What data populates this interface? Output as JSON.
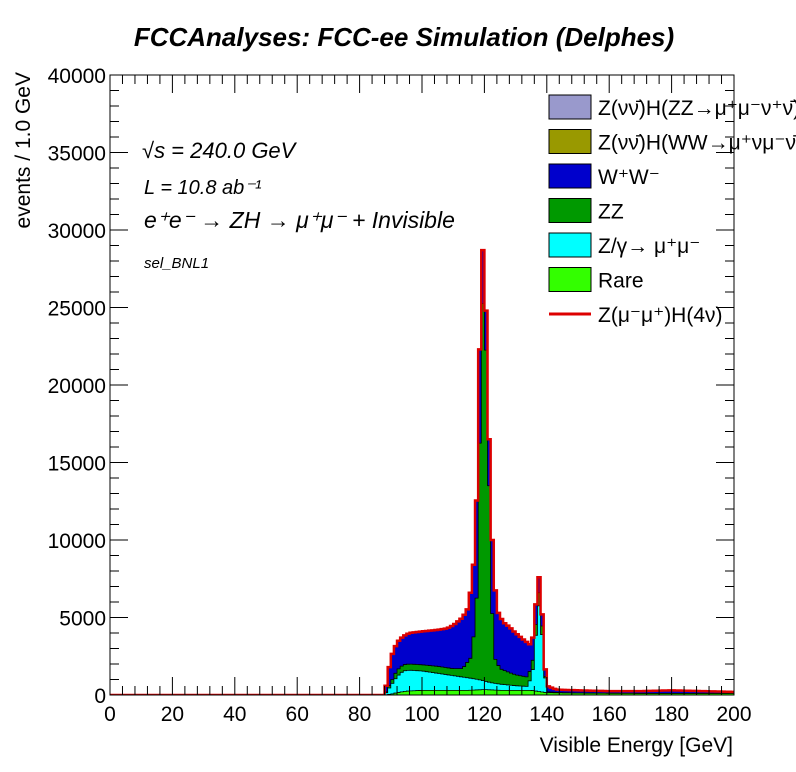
{
  "chart_data": {
    "type": "area",
    "title": "FCCAnalyses: FCC-ee Simulation (Delphes)",
    "xlabel": "Visible Energy [GeV]",
    "ylabel": "events / 1.0 GeV",
    "xlim": [
      0,
      200
    ],
    "ylim": [
      0,
      40000
    ],
    "x_ticks": [
      "0",
      "20",
      "40",
      "60",
      "80",
      "100",
      "120",
      "140",
      "160",
      "180",
      "200"
    ],
    "y_ticks": [
      "0",
      "5000",
      "10000",
      "15000",
      "20000",
      "25000",
      "30000",
      "35000",
      "40000"
    ],
    "stacked": true,
    "legend_position": "top-right",
    "annotations": {
      "energy": "√s = 240.0 GeV",
      "lumi": "L = 10.8 ab⁻¹",
      "process": "e⁺e⁻ → ZH → μ⁺μ⁻ + Invisible",
      "selection": "sel_BNL1"
    },
    "series": [
      {
        "name": "Rare",
        "color": "#33ff00",
        "stack_order": 1,
        "points": [
          [
            88,
            0
          ],
          [
            90,
            50
          ],
          [
            92,
            150
          ],
          [
            95,
            250
          ],
          [
            100,
            300
          ],
          [
            110,
            300
          ],
          [
            115,
            300
          ],
          [
            120,
            350
          ],
          [
            125,
            300
          ],
          [
            130,
            300
          ],
          [
            135,
            300
          ],
          [
            140,
            150
          ],
          [
            150,
            120
          ],
          [
            170,
            100
          ],
          [
            200,
            100
          ]
        ]
      },
      {
        "name": "Z/γ→ μ⁺μ⁻",
        "color": "#00ffff",
        "stack_order": 2,
        "points": [
          [
            88,
            0
          ],
          [
            90,
            600
          ],
          [
            92,
            1200
          ],
          [
            94,
            1550
          ],
          [
            96,
            1600
          ],
          [
            100,
            1550
          ],
          [
            105,
            1400
          ],
          [
            110,
            1250
          ],
          [
            115,
            1100
          ],
          [
            118,
            1000
          ],
          [
            120,
            900
          ],
          [
            122,
            800
          ],
          [
            125,
            700
          ],
          [
            130,
            600
          ],
          [
            134,
            550
          ],
          [
            136,
            2000
          ],
          [
            137,
            5700
          ],
          [
            138,
            5800
          ],
          [
            139,
            2000
          ],
          [
            140,
            200
          ],
          [
            145,
            120
          ],
          [
            150,
            100
          ],
          [
            160,
            100
          ],
          [
            180,
            100
          ],
          [
            200,
            100
          ]
        ]
      },
      {
        "name": "ZZ",
        "color": "#009900",
        "stack_order": 3,
        "points": [
          [
            88,
            0
          ],
          [
            90,
            800
          ],
          [
            92,
            1600
          ],
          [
            94,
            1950
          ],
          [
            96,
            2000
          ],
          [
            100,
            1950
          ],
          [
            105,
            1850
          ],
          [
            110,
            1700
          ],
          [
            113,
            1700
          ],
          [
            116,
            2500
          ],
          [
            118,
            7500
          ],
          [
            119,
            25000
          ],
          [
            120,
            25500
          ],
          [
            121,
            19000
          ],
          [
            122,
            8000
          ],
          [
            123,
            2500
          ],
          [
            125,
            1700
          ],
          [
            128,
            1450
          ],
          [
            130,
            1300
          ],
          [
            134,
            1150
          ],
          [
            136,
            2600
          ],
          [
            137,
            6500
          ],
          [
            138,
            6700
          ],
          [
            139,
            2200
          ],
          [
            140,
            200
          ],
          [
            145,
            150
          ],
          [
            150,
            120
          ],
          [
            160,
            100
          ],
          [
            180,
            100
          ],
          [
            200,
            100
          ]
        ]
      },
      {
        "name": "W⁺W⁻",
        "color": "#0000cc",
        "stack_order": 4,
        "points": [
          [
            88,
            0
          ],
          [
            90,
            2400
          ],
          [
            92,
            3400
          ],
          [
            94,
            3800
          ],
          [
            96,
            4000
          ],
          [
            100,
            4100
          ],
          [
            105,
            4200
          ],
          [
            108,
            4300
          ],
          [
            110,
            4500
          ],
          [
            113,
            5000
          ],
          [
            115,
            5700
          ],
          [
            117,
            9300
          ],
          [
            118,
            15800
          ],
          [
            119,
            28800
          ],
          [
            120,
            28600
          ],
          [
            121,
            21000
          ],
          [
            122,
            12000
          ],
          [
            123,
            8000
          ],
          [
            124,
            5500
          ],
          [
            126,
            4700
          ],
          [
            128,
            4400
          ],
          [
            130,
            4000
          ],
          [
            133,
            3500
          ],
          [
            135,
            3200
          ],
          [
            136,
            4200
          ],
          [
            137,
            7500
          ],
          [
            138,
            7700
          ],
          [
            139,
            2700
          ],
          [
            140,
            600
          ],
          [
            143,
            350
          ],
          [
            150,
            300
          ],
          [
            160,
            250
          ],
          [
            170,
            250
          ],
          [
            180,
            300
          ],
          [
            190,
            250
          ],
          [
            200,
            200
          ]
        ]
      },
      {
        "name": "Z(νν̄)H(WW→μ⁺νμ⁻ν̄)",
        "color": "#999900",
        "stack_order": 5,
        "points": []
      },
      {
        "name": "Z(νν̄)H(ZZ→μ⁺μ⁻ν⁺ν̄)",
        "color": "#9999cc",
        "stack_order": 6,
        "points": []
      },
      {
        "name": "Z(μ⁻μ⁺)H(4ν)",
        "color": "#dd0000",
        "style": "line",
        "points": [
          [
            0,
            0
          ],
          [
            88,
            0
          ],
          [
            90,
            2400
          ],
          [
            92,
            3400
          ],
          [
            94,
            3800
          ],
          [
            96,
            4000
          ],
          [
            100,
            4100
          ],
          [
            105,
            4200
          ],
          [
            108,
            4300
          ],
          [
            110,
            4500
          ],
          [
            113,
            5000
          ],
          [
            115,
            5700
          ],
          [
            117,
            9300
          ],
          [
            118,
            15800
          ],
          [
            119,
            28800
          ],
          [
            120,
            28600
          ],
          [
            121,
            21000
          ],
          [
            122,
            12000
          ],
          [
            123,
            8000
          ],
          [
            124,
            5500
          ],
          [
            126,
            4700
          ],
          [
            128,
            4400
          ],
          [
            130,
            4000
          ],
          [
            133,
            3500
          ],
          [
            135,
            3200
          ],
          [
            136,
            4200
          ],
          [
            137,
            7500
          ],
          [
            138,
            7700
          ],
          [
            139,
            2700
          ],
          [
            140,
            600
          ],
          [
            143,
            350
          ],
          [
            150,
            300
          ],
          [
            160,
            250
          ],
          [
            170,
            250
          ],
          [
            180,
            300
          ],
          [
            190,
            250
          ],
          [
            200,
            200
          ]
        ]
      }
    ],
    "legend": [
      {
        "name": "Z(νν̄)H(ZZ→μ⁺μ⁻ν⁺ν̄)",
        "color": "#9999cc",
        "kind": "box"
      },
      {
        "name": "Z(νν̄)H(WW→μ⁺νμ⁻ν̄)",
        "color": "#999900",
        "kind": "box"
      },
      {
        "name": "W⁺W⁻",
        "color": "#0000cc",
        "kind": "box"
      },
      {
        "name": "ZZ",
        "color": "#009900",
        "kind": "box"
      },
      {
        "name": "Z/γ→ μ⁺μ⁻",
        "color": "#00ffff",
        "kind": "box"
      },
      {
        "name": "Rare",
        "color": "#33ff00",
        "kind": "box"
      },
      {
        "name": "Z(μ⁻μ⁺)H(4ν)",
        "color": "#dd0000",
        "kind": "line"
      }
    ]
  }
}
